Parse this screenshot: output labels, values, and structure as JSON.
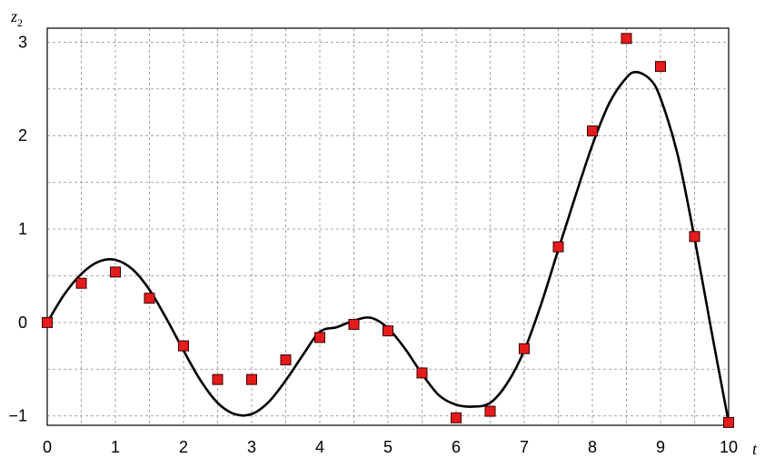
{
  "chart_data": {
    "type": "scatter",
    "xlabel": "t",
    "ylabel": "z",
    "ylabel_sub": "2",
    "xlim": [
      0,
      10
    ],
    "ylim": [
      -1.1,
      3.15
    ],
    "xticks": [
      "0",
      "1",
      "2",
      "3",
      "4",
      "5",
      "6",
      "7",
      "8",
      "9",
      "10"
    ],
    "yticks": [
      "−1",
      "0",
      "1",
      "2",
      "3"
    ],
    "xtick_values": [
      0,
      1,
      2,
      3,
      4,
      5,
      6,
      7,
      8,
      9,
      10
    ],
    "ytick_values": [
      -1,
      0,
      1,
      2,
      3
    ],
    "grid": true,
    "marker_color": "#e51b1b",
    "line_color": "#000000",
    "series": [
      {
        "kind": "points",
        "x": [
          0,
          0.5,
          1,
          1.5,
          2,
          2.5,
          3,
          3.5,
          4,
          4.5,
          5,
          5.5,
          6,
          6.5,
          7,
          7.5,
          8,
          8.5,
          9,
          9.5,
          10
        ],
        "y": [
          0.0,
          0.42,
          0.54,
          0.26,
          -0.25,
          -0.61,
          -0.61,
          -0.4,
          -0.16,
          -0.02,
          -0.09,
          -0.54,
          -1.02,
          -0.95,
          -0.28,
          0.81,
          2.05,
          3.04,
          2.74,
          0.92,
          -1.07
        ]
      },
      {
        "kind": "curve",
        "x": [
          0,
          0.25,
          0.5,
          0.75,
          1.0,
          1.25,
          1.5,
          1.75,
          2.0,
          2.25,
          2.5,
          2.75,
          3.0,
          3.25,
          3.5,
          3.75,
          4.0,
          4.25,
          4.5,
          4.75,
          5.0,
          5.25,
          5.5,
          5.75,
          6.0,
          6.25,
          6.5,
          6.75,
          7.0,
          7.25,
          7.5,
          7.75,
          8.0,
          8.25,
          8.5,
          8.65,
          8.85,
          9.0,
          9.25,
          9.5,
          9.75,
          10.0
        ],
        "y": [
          0.0,
          0.3,
          0.52,
          0.65,
          0.67,
          0.57,
          0.35,
          0.04,
          -0.3,
          -0.62,
          -0.86,
          -0.98,
          -0.98,
          -0.85,
          -0.62,
          -0.35,
          -0.1,
          -0.05,
          0.02,
          0.05,
          -0.06,
          -0.28,
          -0.55,
          -0.78,
          -0.88,
          -0.9,
          -0.86,
          -0.65,
          -0.3,
          0.2,
          0.78,
          1.35,
          1.9,
          2.35,
          2.62,
          2.68,
          2.6,
          2.4,
          1.8,
          0.9,
          -0.1,
          -1.07
        ]
      }
    ]
  }
}
